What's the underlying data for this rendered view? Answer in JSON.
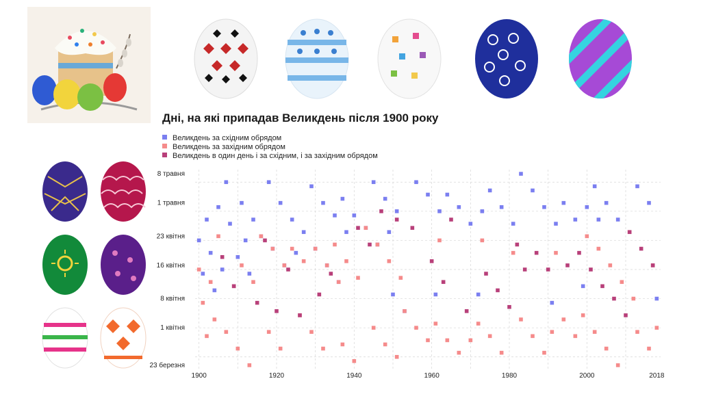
{
  "colors": {
    "eastern": "#7b7ff0",
    "western": "#f58b8b",
    "both": "#b8407a",
    "grid": "#d6d6d6"
  },
  "chart_data": {
    "type": "scatter",
    "title": "Дні, на які припадав Великдень після 1900 року",
    "xlabel": "",
    "ylabel": "",
    "x_ticks": [
      "1900",
      "1920",
      "1940",
      "1960",
      "1980",
      "2000",
      "2018"
    ],
    "y_ticks": [
      "8 травня",
      "1 травня",
      "23 квітня",
      "16 квітня",
      "8 квітня",
      "1 квітня",
      "23 березня"
    ],
    "xlim": [
      1899,
      2019
    ],
    "ylim": [
      "2000-03-22",
      "2000-05-09"
    ],
    "grid": true,
    "legend": "top-left",
    "series": [
      {
        "name": "Великдень за східним обрядом",
        "key": "eastern",
        "points": [
          [
            1900,
            "2000-04-22"
          ],
          [
            1901,
            "2000-04-14"
          ],
          [
            1902,
            "2000-04-27"
          ],
          [
            1903,
            "2000-04-19"
          ],
          [
            1904,
            "2000-04-10"
          ],
          [
            1905,
            "2000-04-30"
          ],
          [
            1906,
            "2000-04-15"
          ],
          [
            1907,
            "2000-05-06"
          ],
          [
            1908,
            "2000-04-26"
          ],
          [
            1910,
            "2000-04-18"
          ],
          [
            1911,
            "2000-05-01"
          ],
          [
            1912,
            "2000-04-22"
          ],
          [
            1913,
            "2000-04-14"
          ],
          [
            1914,
            "2000-04-27"
          ],
          [
            1916,
            "2000-04-23"
          ],
          [
            1918,
            "2000-05-06"
          ],
          [
            1919,
            "2000-04-20"
          ],
          [
            1921,
            "2000-05-01"
          ],
          [
            1922,
            "2000-04-16"
          ],
          [
            1924,
            "2000-04-27"
          ],
          [
            1925,
            "2000-04-19"
          ],
          [
            1927,
            "2000-04-24"
          ],
          [
            1929,
            "2000-05-05"
          ],
          [
            1930,
            "2000-04-20"
          ],
          [
            1932,
            "2000-05-01"
          ],
          [
            1933,
            "2000-04-16"
          ],
          [
            1935,
            "2000-04-28"
          ],
          [
            1936,
            "2000-04-12"
          ],
          [
            1937,
            "2000-05-02"
          ],
          [
            1938,
            "2000-04-24"
          ],
          [
            1940,
            "2000-04-28"
          ],
          [
            1943,
            "2000-04-25"
          ],
          [
            1945,
            "2000-05-06"
          ],
          [
            1946,
            "2000-04-21"
          ],
          [
            1948,
            "2000-05-02"
          ],
          [
            1949,
            "2000-04-24"
          ],
          [
            1950,
            "2000-04-09"
          ],
          [
            1951,
            "2000-04-29"
          ],
          [
            1953,
            "2000-04-05"
          ],
          [
            1956,
            "2000-05-06"
          ],
          [
            1959,
            "2000-05-03"
          ],
          [
            1961,
            "2000-04-09"
          ],
          [
            1962,
            "2000-04-29"
          ],
          [
            1964,
            "2000-05-03"
          ],
          [
            1967,
            "2000-04-30"
          ],
          [
            1970,
            "2000-04-26"
          ],
          [
            1972,
            "2000-04-09"
          ],
          [
            1973,
            "2000-04-29"
          ],
          [
            1975,
            "2000-05-04"
          ],
          [
            1978,
            "2000-04-30"
          ],
          [
            1981,
            "2000-04-26"
          ],
          [
            1983,
            "2000-05-08"
          ],
          [
            1986,
            "2000-05-04"
          ],
          [
            1989,
            "2000-04-30"
          ],
          [
            1991,
            "2000-04-07"
          ],
          [
            1992,
            "2000-04-26"
          ],
          [
            1994,
            "2000-05-01"
          ],
          [
            1997,
            "2000-04-27"
          ],
          [
            1999,
            "2000-04-11"
          ],
          [
            2000,
            "2000-04-30"
          ],
          [
            2002,
            "2000-05-05"
          ],
          [
            2003,
            "2000-04-27"
          ],
          [
            2005,
            "2000-05-01"
          ],
          [
            2008,
            "2000-04-27"
          ],
          [
            2013,
            "2000-05-05"
          ],
          [
            2016,
            "2000-05-01"
          ],
          [
            2018,
            "2000-04-08"
          ]
        ]
      },
      {
        "name": "Великдень за західним обрядом",
        "key": "western",
        "points": [
          [
            1900,
            "2000-04-15"
          ],
          [
            1901,
            "2000-04-07"
          ],
          [
            1902,
            "2000-03-30"
          ],
          [
            1903,
            "2000-04-12"
          ],
          [
            1904,
            "2000-04-03"
          ],
          [
            1905,
            "2000-04-23"
          ],
          [
            1907,
            "2000-03-31"
          ],
          [
            1909,
            "2000-04-11"
          ],
          [
            1910,
            "2000-03-27"
          ],
          [
            1911,
            "2000-04-16"
          ],
          [
            1913,
            "2000-03-23"
          ],
          [
            1914,
            "2000-04-12"
          ],
          [
            1916,
            "2000-04-23"
          ],
          [
            1918,
            "2000-03-31"
          ],
          [
            1919,
            "2000-04-20"
          ],
          [
            1921,
            "2000-03-27"
          ],
          [
            1922,
            "2000-04-16"
          ],
          [
            1924,
            "2000-04-20"
          ],
          [
            1926,
            "2000-04-04"
          ],
          [
            1927,
            "2000-04-17"
          ],
          [
            1929,
            "2000-03-31"
          ],
          [
            1930,
            "2000-04-20"
          ],
          [
            1932,
            "2000-03-27"
          ],
          [
            1933,
            "2000-04-16"
          ],
          [
            1935,
            "2000-04-21"
          ],
          [
            1936,
            "2000-04-12"
          ],
          [
            1937,
            "2000-03-28"
          ],
          [
            1938,
            "2000-04-17"
          ],
          [
            1940,
            "2000-03-24"
          ],
          [
            1941,
            "2000-04-13"
          ],
          [
            1943,
            "2000-04-25"
          ],
          [
            1945,
            "2000-04-01"
          ],
          [
            1946,
            "2000-04-21"
          ],
          [
            1948,
            "2000-03-28"
          ],
          [
            1949,
            "2000-04-17"
          ],
          [
            1951,
            "2000-03-25"
          ],
          [
            1952,
            "2000-04-13"
          ],
          [
            1953,
            "2000-04-05"
          ],
          [
            1956,
            "2000-04-01"
          ],
          [
            1959,
            "2000-03-29"
          ],
          [
            1961,
            "2000-04-02"
          ],
          [
            1962,
            "2000-04-22"
          ],
          [
            1964,
            "2000-03-29"
          ],
          [
            1967,
            "2000-03-26"
          ],
          [
            1970,
            "2000-03-29"
          ],
          [
            1972,
            "2000-04-02"
          ],
          [
            1973,
            "2000-04-22"
          ],
          [
            1975,
            "2000-03-30"
          ],
          [
            1978,
            "2000-03-26"
          ],
          [
            1981,
            "2000-04-19"
          ],
          [
            1983,
            "2000-04-03"
          ],
          [
            1986,
            "2000-03-30"
          ],
          [
            1989,
            "2000-03-26"
          ],
          [
            1991,
            "2000-03-31"
          ],
          [
            1992,
            "2000-04-19"
          ],
          [
            1994,
            "2000-04-03"
          ],
          [
            1997,
            "2000-03-30"
          ],
          [
            1999,
            "2000-04-04"
          ],
          [
            2000,
            "2000-04-23"
          ],
          [
            2002,
            "2000-03-31"
          ],
          [
            2003,
            "2000-04-20"
          ],
          [
            2005,
            "2000-03-27"
          ],
          [
            2006,
            "2000-04-16"
          ],
          [
            2008,
            "2000-03-23"
          ],
          [
            2009,
            "2000-04-12"
          ],
          [
            2011,
            "2000-04-24"
          ],
          [
            2012,
            "2000-04-08"
          ],
          [
            2013,
            "2000-03-31"
          ],
          [
            2016,
            "2000-03-27"
          ],
          [
            2017,
            "2000-04-16"
          ],
          [
            2018,
            "2000-04-01"
          ]
        ]
      },
      {
        "name": "Великдень в один день і за східним, і за західним обрядом",
        "key": "both",
        "points": [
          [
            1906,
            "2000-04-18"
          ],
          [
            1909,
            "2000-04-11"
          ],
          [
            1915,
            "2000-04-07"
          ],
          [
            1917,
            "2000-04-22"
          ],
          [
            1920,
            "2000-04-05"
          ],
          [
            1923,
            "2000-04-15"
          ],
          [
            1926,
            "2000-04-04"
          ],
          [
            1931,
            "2000-04-09"
          ],
          [
            1934,
            "2000-04-14"
          ],
          [
            1941,
            "2000-04-25"
          ],
          [
            1944,
            "2000-04-21"
          ],
          [
            1947,
            "2000-04-29"
          ],
          [
            1951,
            "2000-04-27"
          ],
          [
            1955,
            "2000-04-25"
          ],
          [
            1960,
            "2000-04-17"
          ],
          [
            1963,
            "2000-04-12"
          ],
          [
            1965,
            "2000-04-27"
          ],
          [
            1969,
            "2000-04-05"
          ],
          [
            1974,
            "2000-04-14"
          ],
          [
            1977,
            "2000-04-10"
          ],
          [
            1980,
            "2000-04-06"
          ],
          [
            1982,
            "2000-04-21"
          ],
          [
            1984,
            "2000-04-15"
          ],
          [
            1987,
            "2000-04-19"
          ],
          [
            1990,
            "2000-04-15"
          ],
          [
            1995,
            "2000-04-16"
          ],
          [
            1998,
            "2000-04-19"
          ],
          [
            2001,
            "2000-04-15"
          ],
          [
            2004,
            "2000-04-11"
          ],
          [
            2007,
            "2000-04-08"
          ],
          [
            2010,
            "2000-04-04"
          ],
          [
            2011,
            "2000-04-24"
          ],
          [
            2014,
            "2000-04-20"
          ],
          [
            2017,
            "2000-04-16"
          ]
        ]
      }
    ]
  }
}
